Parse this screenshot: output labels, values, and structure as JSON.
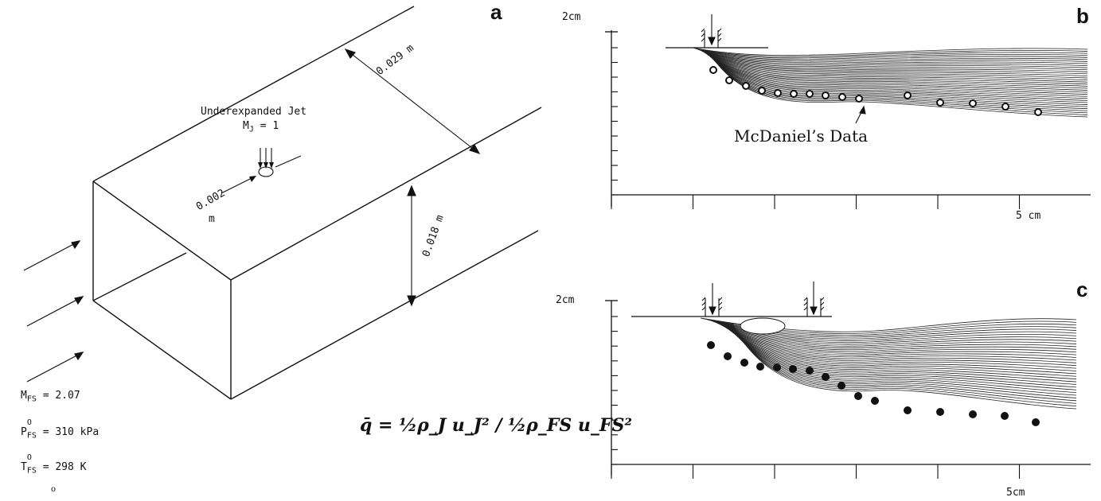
{
  "panel_a": {
    "letter": "a",
    "jet_title": "Underexpanded Jet",
    "jet_mach_symbol": "M",
    "jet_mach_sub": "J",
    "jet_mach_value": "= 1",
    "width_dim": "0.029 m",
    "height_dim": "0.018 m",
    "injector_dim_1": "0.002",
    "injector_dim_2": "m",
    "conditions": [
      {
        "symbol": "M",
        "sup": "",
        "sub": "FS",
        "value": "= 2.07"
      },
      {
        "symbol": "P",
        "sup": "O",
        "sub": "FS",
        "value": "= 310 kPa"
      },
      {
        "symbol": "T",
        "sup": "O",
        "sub": "FS",
        "value": "= 298 K"
      }
    ],
    "formula": "q̄ = ½ρ_J u_J² / ½ρ_FS u_FS²"
  },
  "panel_b": {
    "letter": "b",
    "y_label": "2cm",
    "x_label": "5 cm",
    "annotation": "McDaniel’s Data"
  },
  "panel_c": {
    "letter": "c",
    "y_label": "2cm",
    "x_label": "5cm"
  }
}
